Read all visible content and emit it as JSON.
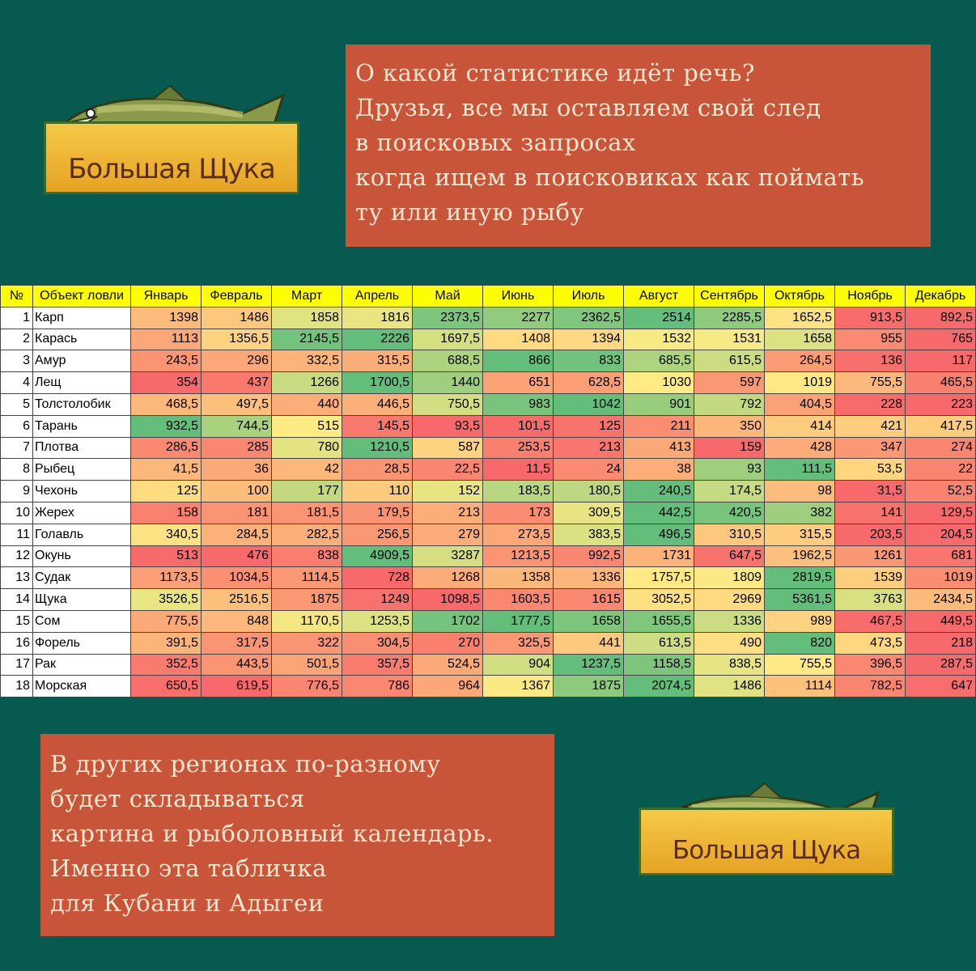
{
  "logo": {
    "text": "Большая Щука"
  },
  "top_box": {
    "lines": [
      "О какой статистике идёт речь?",
      "Друзья, все мы оставляем свой след",
      "в поисковых запросах",
      "когда ищем в поисковиках как поймать",
      "ту или иную рыбу"
    ]
  },
  "bottom_box": {
    "lines": [
      "В других регионах по-разному",
      "будет складываться",
      "картина и рыболовный календарь.",
      "Именно эта табличка",
      "для Кубани и Адыгеи"
    ]
  },
  "table": {
    "headers": [
      "№",
      "Объект ловли",
      "Январь",
      "Февраль",
      "Март",
      "Апрель",
      "Май",
      "Июнь",
      "Июль",
      "Август",
      "Сентябрь",
      "Октябрь",
      "Ноябрь",
      "Декабрь"
    ],
    "rows": [
      {
        "n": "1",
        "name": "Карп",
        "values": [
          "1398",
          "1486",
          "1858",
          "1816",
          "2373,5",
          "2277",
          "2362,5",
          "2514",
          "2285,5",
          "1652,5",
          "913,5",
          "892,5"
        ]
      },
      {
        "n": "2",
        "name": "Карась",
        "values": [
          "1113",
          "1356,5",
          "2145,5",
          "2226",
          "1697,5",
          "1408",
          "1394",
          "1532",
          "1531",
          "1658",
          "955",
          "765"
        ]
      },
      {
        "n": "3",
        "name": "Амур",
        "values": [
          "243,5",
          "296",
          "332,5",
          "315,5",
          "688,5",
          "866",
          "833",
          "685,5",
          "615,5",
          "264,5",
          "136",
          "117"
        ]
      },
      {
        "n": "4",
        "name": "Лещ",
        "values": [
          "354",
          "437",
          "1266",
          "1700,5",
          "1440",
          "651",
          "628,5",
          "1030",
          "597",
          "1019",
          "755,5",
          "465,5"
        ]
      },
      {
        "n": "5",
        "name": "Толстолобик",
        "values": [
          "468,5",
          "497,5",
          "440",
          "446,5",
          "750,5",
          "983",
          "1042",
          "901",
          "792",
          "404,5",
          "228",
          "223"
        ]
      },
      {
        "n": "6",
        "name": "Тарань",
        "values": [
          "932,5",
          "744,5",
          "515",
          "145,5",
          "93,5",
          "101,5",
          "125",
          "211",
          "350",
          "414",
          "421",
          "417,5"
        ]
      },
      {
        "n": "7",
        "name": "Плотва",
        "values": [
          "286,5",
          "285",
          "780",
          "1210,5",
          "587",
          "253,5",
          "213",
          "413",
          "159",
          "428",
          "347",
          "274"
        ]
      },
      {
        "n": "8",
        "name": "Рыбец",
        "values": [
          "41,5",
          "36",
          "42",
          "28,5",
          "22,5",
          "11,5",
          "24",
          "38",
          "93",
          "111,5",
          "53,5",
          "22"
        ]
      },
      {
        "n": "9",
        "name": "Чехонь",
        "values": [
          "125",
          "100",
          "177",
          "110",
          "152",
          "183,5",
          "180,5",
          "240,5",
          "174,5",
          "98",
          "31,5",
          "52,5"
        ]
      },
      {
        "n": "10",
        "name": "Жерех",
        "values": [
          "158",
          "181",
          "181,5",
          "179,5",
          "213",
          "173",
          "309,5",
          "442,5",
          "420,5",
          "382",
          "141",
          "129,5"
        ]
      },
      {
        "n": "11",
        "name": "Голавль",
        "values": [
          "340,5",
          "284,5",
          "282,5",
          "256,5",
          "279",
          "273,5",
          "383,5",
          "496,5",
          "310,5",
          "315,5",
          "203,5",
          "204,5"
        ]
      },
      {
        "n": "12",
        "name": "Окунь",
        "values": [
          "513",
          "476",
          "838",
          "4909,5",
          "3287",
          "1213,5",
          "992,5",
          "1731",
          "647,5",
          "1962,5",
          "1261",
          "681"
        ]
      },
      {
        "n": "13",
        "name": "Судак",
        "values": [
          "1173,5",
          "1034,5",
          "1114,5",
          "728",
          "1268",
          "1358",
          "1336",
          "1757,5",
          "1809",
          "2819,5",
          "1539",
          "1019"
        ]
      },
      {
        "n": "14",
        "name": "Щука",
        "values": [
          "3526,5",
          "2516,5",
          "1875",
          "1249",
          "1098,5",
          "1603,5",
          "1615",
          "3052,5",
          "2969",
          "5361,5",
          "3763",
          "2434,5"
        ]
      },
      {
        "n": "15",
        "name": "Сом",
        "values": [
          "775,5",
          "848",
          "1170,5",
          "1253,5",
          "1702",
          "1777,5",
          "1658",
          "1655,5",
          "1336",
          "989",
          "467,5",
          "449,5"
        ]
      },
      {
        "n": "16",
        "name": "Форель",
        "values": [
          "391,5",
          "317,5",
          "322",
          "304,5",
          "270",
          "325,5",
          "441",
          "613,5",
          "490",
          "820",
          "473,5",
          "218"
        ]
      },
      {
        "n": "17",
        "name": "Рак",
        "values": [
          "352,5",
          "443,5",
          "501,5",
          "357,5",
          "524,5",
          "904",
          "1237,5",
          "1158,5",
          "838,5",
          "755,5",
          "396,5",
          "287,5"
        ]
      },
      {
        "n": "18",
        "name": "Морская",
        "values": [
          "650,5",
          "619,5",
          "776,5",
          "786",
          "964",
          "1367",
          "1875",
          "2074,5",
          "1486",
          "1114",
          "782,5",
          "647"
        ]
      }
    ]
  },
  "colors": {
    "background": "#065a50",
    "box": "#c8553a",
    "box_text": "#f5e6cf",
    "header": "#ffff00",
    "scale_low": "#f8696b",
    "scale_mid": "#ffeb84",
    "scale_high": "#63be7b"
  }
}
